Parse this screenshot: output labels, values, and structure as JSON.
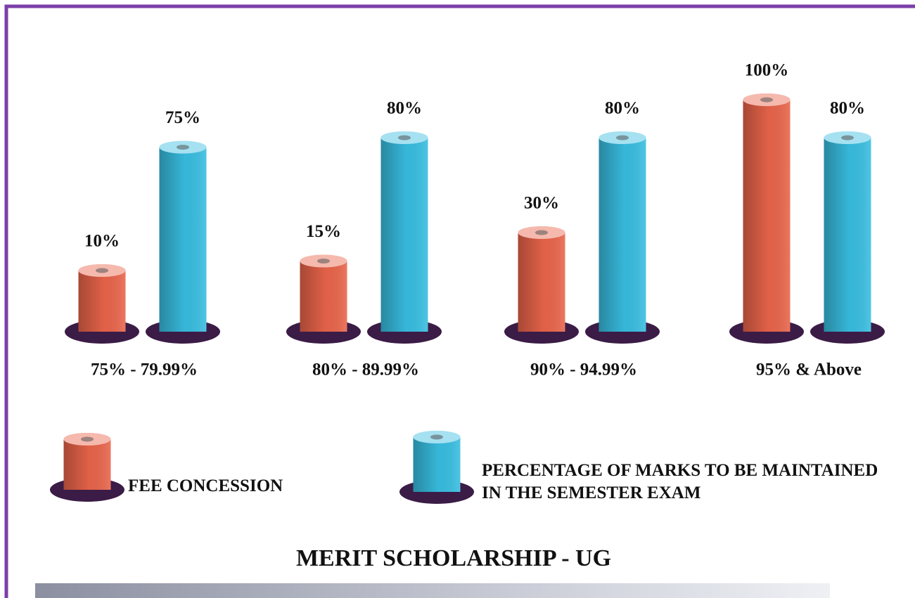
{
  "chart_data": {
    "type": "bar",
    "title": "MERIT SCHOLARSHIP - UG",
    "categories": [
      "75% - 79.99%",
      "80% - 89.99%",
      "90% - 94.99%",
      "95% & Above"
    ],
    "series": [
      {
        "name": "FEE CONCESSION",
        "color": "#e8644a",
        "values": [
          10,
          15,
          30,
          100
        ],
        "value_labels": [
          "10%",
          "15%",
          "30%",
          "100%"
        ]
      },
      {
        "name": "PERCENTAGE OF MARKS TO BE MAINTAINED IN THE SEMESTER EXAM",
        "color": "#38bde0",
        "values": [
          75,
          80,
          80,
          80
        ],
        "value_labels": [
          "75%",
          "80%",
          "80%",
          "80%"
        ]
      }
    ]
  }
}
